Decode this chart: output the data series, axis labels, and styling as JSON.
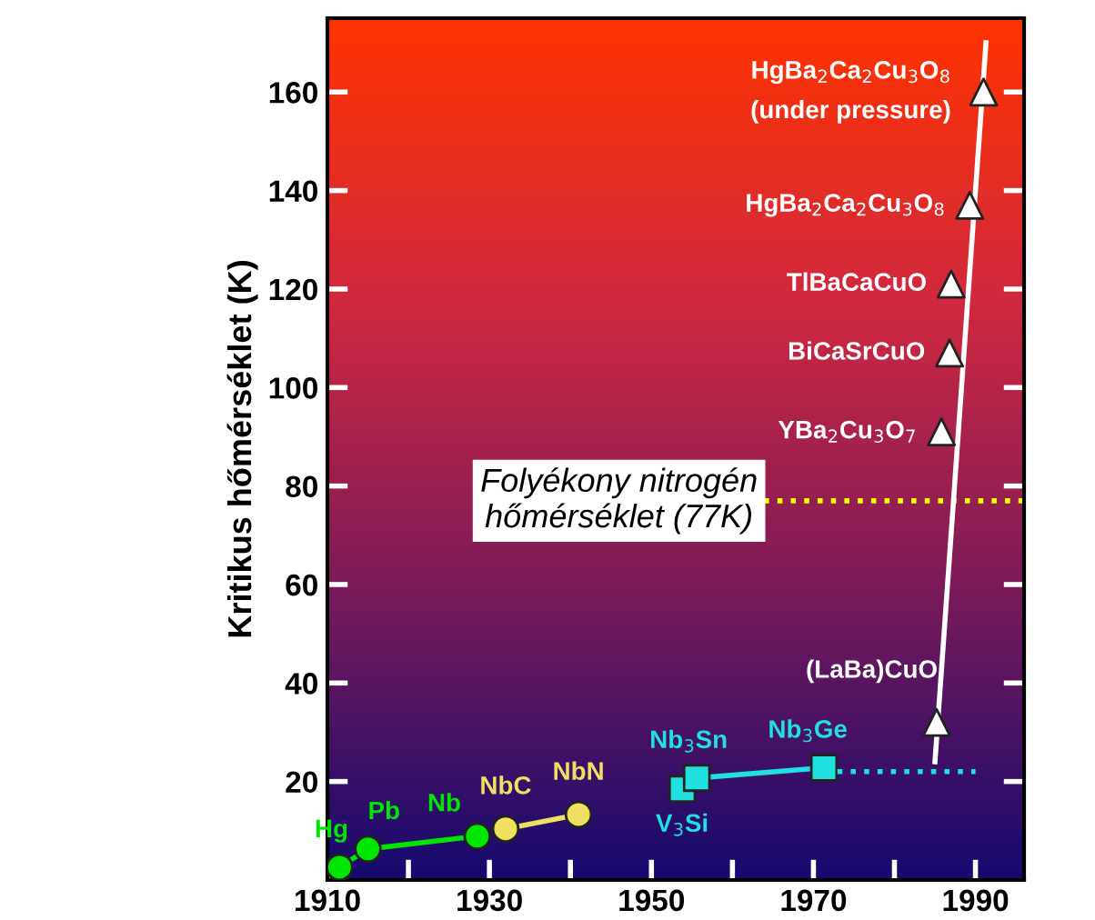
{
  "chart_data": {
    "type": "line",
    "ylabel": "Kritikus hőmérséklet (K)",
    "xlim": [
      1910,
      1996
    ],
    "ylim": [
      0,
      175
    ],
    "xticks": [
      1910,
      {
        "value": 1920,
        "label": null
      },
      1930,
      {
        "value": 1940,
        "label": null
      },
      1950,
      {
        "value": 1960,
        "label": null
      },
      1970,
      {
        "value": 1980,
        "label": null
      },
      1990
    ],
    "yticks": [
      20,
      40,
      60,
      80,
      100,
      120,
      140,
      160
    ],
    "grid": false,
    "legend": false,
    "series": [
      {
        "color": "#00e600",
        "marker": "circle",
        "x": [
          1911.5,
          1915,
          1928.5
        ],
        "values": [
          2.6,
          6.3,
          8.9
        ]
      },
      {
        "color": "#f0e060",
        "marker": "circle",
        "x": [
          1932,
          1941
        ],
        "values": [
          10.4,
          13.3
        ]
      },
      {
        "color": "#20e0e0",
        "marker": "square",
        "x": [
          1953.8,
          1955.6,
          1971.3
        ],
        "values": [
          18.5,
          20.7,
          22.8
        ]
      },
      {
        "color": "#20e0e0",
        "marker": "none",
        "line_style": "dotted",
        "x": [
          1971.3,
          1990
        ],
        "values": [
          22,
          22
        ]
      },
      {
        "color": "#ffffff",
        "marker": "none",
        "x": [
          1985,
          1991.3
        ],
        "values": [
          24,
          170
        ]
      },
      {
        "type": "scatter",
        "color": "#ffffff",
        "marker": "triangle",
        "x": [
          1985.2,
          1985.8,
          1986.8,
          1987,
          1989.3,
          1991
        ],
        "values": [
          32,
          91,
          107,
          121,
          137,
          160
        ]
      }
    ],
    "ref_lines": [
      {
        "axis": "y",
        "value": 77,
        "color": "#ffff00",
        "line_style": "dotted",
        "label": "Folyékony nitrogén\nhőmérséklet (77K)"
      }
    ],
    "annotations": [
      {
        "text": "Hg",
        "x": 1911.5,
        "y": 2.6
      },
      {
        "text": "Pb",
        "x": 1915,
        "y": 6.3
      },
      {
        "text": "Nb",
        "x": 1928.5,
        "y": 8.9
      },
      {
        "text": "NbC",
        "x": 1932,
        "y": 10.4
      },
      {
        "text": "NbN",
        "x": 1941,
        "y": 13.3
      },
      {
        "text": "V$_{3}$Si",
        "x": 1953.8,
        "y": 18.5
      },
      {
        "text": "Nb$_{3}$Sn",
        "x": 1955.6,
        "y": 20.7
      },
      {
        "text": "Nb$_{3}$Ge",
        "x": 1971.3,
        "y": 22.8
      },
      {
        "text": "(LaBa)CuO",
        "x": 1985.2,
        "y": 32
      },
      {
        "text": "YBa$_{2}$Cu$_{3}$O$_{7}$",
        "x": 1985.8,
        "y": 91
      },
      {
        "text": "BiCaSrCuO",
        "x": 1986.8,
        "y": 107
      },
      {
        "text": "TlBaCaCuO",
        "x": 1987,
        "y": 121
      },
      {
        "text": "HgBa$_{2}$Ca$_{2}$Cu$_{3}$O$_{8}$",
        "x": 1989.3,
        "y": 137
      },
      {
        "text": "HgBa$_{2}$Ca$_{2}$Cu$_{3}$O$_{8}$",
        "x": 1991,
        "y": 160
      },
      "(under pressure)"
    ]
  }
}
